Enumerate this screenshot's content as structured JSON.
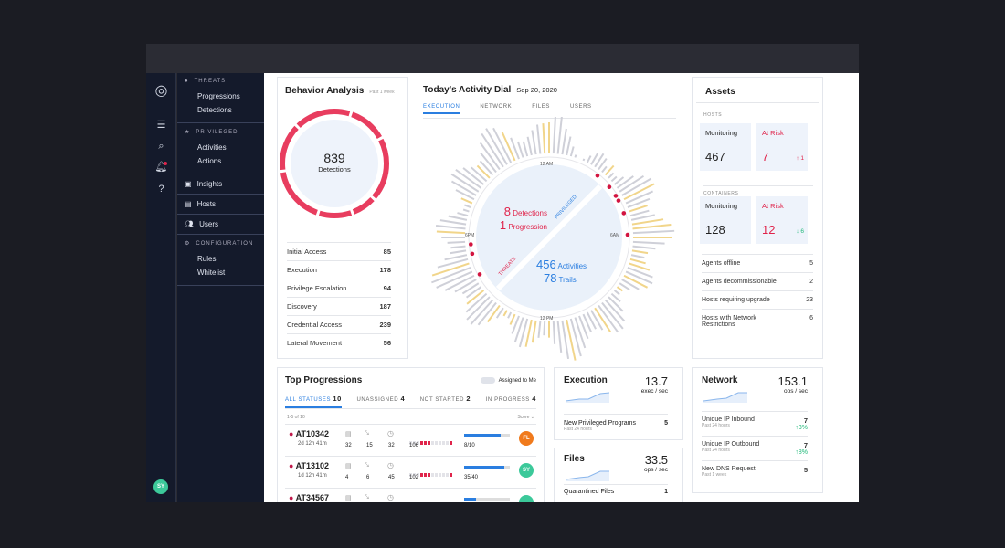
{
  "nav": {
    "threats": "THREATS",
    "threat_items": [
      "Progressions",
      "Detections"
    ],
    "privileged": "PRIVILEGED",
    "priv_items": [
      "Activities",
      "Actions"
    ],
    "insights": "Insights",
    "hosts": "Hosts",
    "users": "Users",
    "configuration": "CONFIGURATION",
    "config_items": [
      "Rules",
      "Whitelist"
    ],
    "user_initials": "SY"
  },
  "behavior": {
    "title": "Behavior Analysis",
    "period": "Past 1 week",
    "total": "839",
    "total_label": "Detections",
    "rows": [
      {
        "label": "Initial Access",
        "value": "85"
      },
      {
        "label": "Execution",
        "value": "178"
      },
      {
        "label": "Privilege Escalation",
        "value": "94"
      },
      {
        "label": "Discovery",
        "value": "187"
      },
      {
        "label": "Credential Access",
        "value": "239"
      },
      {
        "label": "Lateral Movement",
        "value": "56"
      }
    ]
  },
  "dial": {
    "title": "Today's Activity Dial",
    "date": "Sep 20, 2020",
    "tabs": [
      "EXECUTION",
      "NETWORK",
      "FILES",
      "USERS"
    ],
    "active_tab": "EXECUTION",
    "detections_n": "8",
    "detections": "Detections",
    "progression_n": "1",
    "progression": "Progression",
    "activities_n": "456",
    "activities": "Activities",
    "trails_n": "78",
    "trails": "Trails",
    "threats_label": "THREATS",
    "privileged_label": "PRIVILEGED",
    "hours": [
      "12 AM",
      "6AM",
      "12 PM",
      "6PM"
    ]
  },
  "assets": {
    "title": "Assets",
    "hosts_label": "HOSTS",
    "containers_label": "CONTAINERS",
    "monitoring": "Monitoring",
    "at_risk": "At Risk",
    "hosts_monitoring": "467",
    "hosts_risk": "7",
    "hosts_change": "↑ 1",
    "containers_monitoring": "128",
    "containers_risk": "12",
    "containers_change": "↓ 6",
    "rows": [
      {
        "label": "Agents offline",
        "value": "5"
      },
      {
        "label": "Agents decommissionable",
        "value": "2"
      },
      {
        "label": "Hosts requiring upgrade",
        "value": "23"
      },
      {
        "label": "Hosts with Network Restrictions",
        "value": "6"
      }
    ]
  },
  "progressions": {
    "title": "Top Progressions",
    "toggle": "Assigned to Me",
    "tabs": [
      {
        "label": "ALL STATUSES",
        "count": "10"
      },
      {
        "label": "UNASSIGNED",
        "count": "4"
      },
      {
        "label": "NOT STARTED",
        "count": "2"
      },
      {
        "label": "IN PROGRESS",
        "count": "4"
      }
    ],
    "range": "1-5 of 10",
    "sort": "Score",
    "items": [
      {
        "id": "AT10342",
        "age": "2d 12h 41m",
        "a": "32",
        "b": "15",
        "c": "32",
        "score": "106",
        "progress": "8/10",
        "pct": 0.8,
        "initials": "FL",
        "color": "#f07a1c"
      },
      {
        "id": "AT13102",
        "age": "1d 12h 41m",
        "a": "4",
        "b": "6",
        "c": "45",
        "score": "102",
        "progress": "35/40",
        "pct": 0.875,
        "initials": "SY",
        "color": "#3cc99a"
      },
      {
        "id": "AT34567",
        "age": "",
        "a": "",
        "b": "",
        "c": "",
        "score": "",
        "progress": "",
        "pct": 0.25,
        "initials": "",
        "color": "#3cc99a"
      }
    ]
  },
  "execution": {
    "title": "Execution",
    "value": "13.7",
    "unit": "exec / sec",
    "row_label": "New Privileged Programs",
    "row_sub": "Past 24 hours",
    "row_value": "5"
  },
  "files": {
    "title": "Files",
    "value": "33.5",
    "unit": "ops / sec",
    "row_label": "Quarantined Files",
    "row_value": "1"
  },
  "network": {
    "title": "Network",
    "value": "153.1",
    "unit": "ops / sec",
    "rows": [
      {
        "label": "Unique IP Inbound",
        "sub": "Past 24 hours",
        "value": "7",
        "change": "↑3%"
      },
      {
        "label": "Unique IP Outbound",
        "sub": "Past 24 hours",
        "value": "7",
        "change": "↑8%"
      },
      {
        "label": "New DNS Request",
        "sub": "Past 1 week",
        "value": "5",
        "change": ""
      }
    ]
  },
  "colors": {
    "red": "#e0244b",
    "blue": "#2a7ee0",
    "nav_bg": "#141a2b"
  }
}
